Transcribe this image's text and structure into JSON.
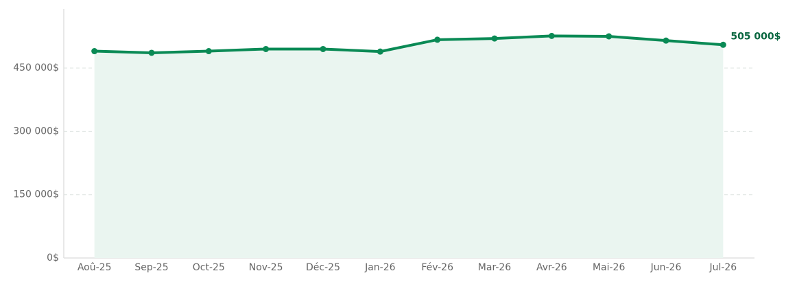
{
  "chart_data": {
    "type": "line",
    "categories": [
      "Aoû-25",
      "Sep-25",
      "Oct-25",
      "Nov-25",
      "Déc-25",
      "Jan-26",
      "Fév-26",
      "Mar-26",
      "Avr-26",
      "Mai-26",
      "Jun-26",
      "Jul-26"
    ],
    "values": [
      490000,
      486000,
      490000,
      495000,
      495000,
      489000,
      517000,
      520000,
      526000,
      525000,
      515000,
      505000
    ],
    "value_labels": [
      null,
      null,
      null,
      null,
      null,
      null,
      null,
      null,
      null,
      null,
      null,
      "505 000$"
    ],
    "color": "#0a8a55",
    "area_color": "#eaf5f0",
    "ylim": [
      0,
      590000
    ],
    "yticks": [
      {
        "value": 0,
        "label": "0$"
      },
      {
        "value": 150000,
        "label": "150 000$"
      },
      {
        "value": 300000,
        "label": "300 000$"
      },
      {
        "value": 450000,
        "label": "450 000$"
      }
    ],
    "grid": true
  }
}
